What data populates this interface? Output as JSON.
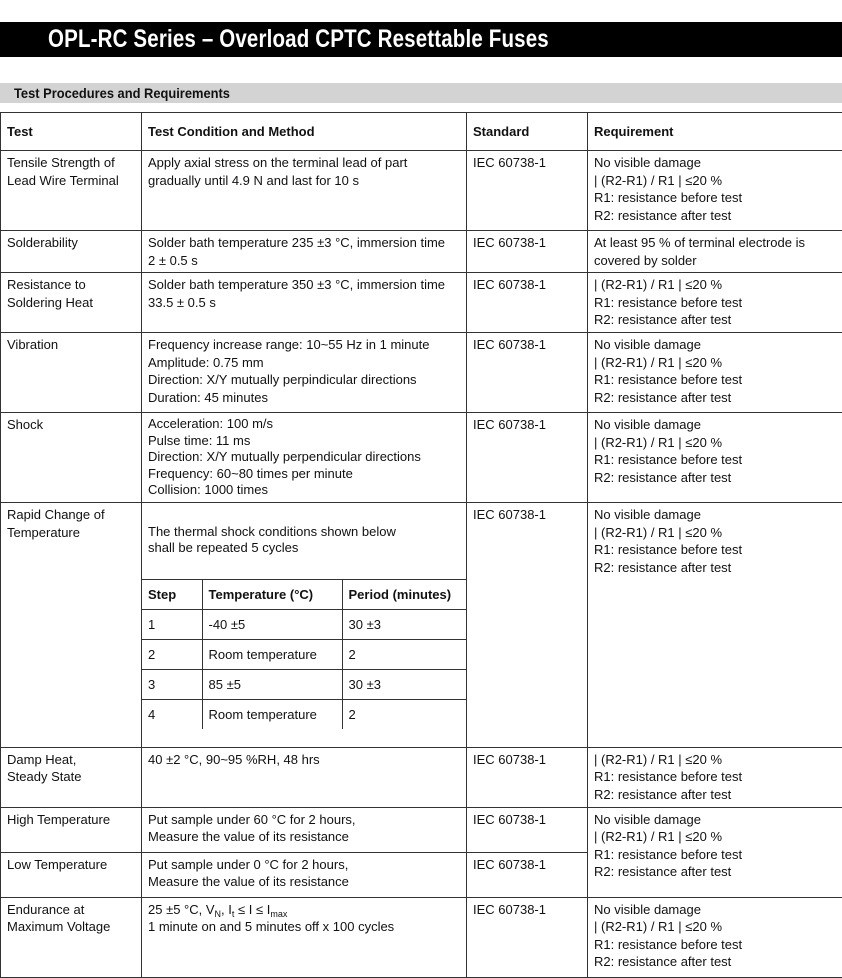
{
  "title": "OPL-RC Series – Overload CPTC Resettable Fuses",
  "section": "Test Procedures and Requirements",
  "headers": {
    "test": "Test",
    "condition": "Test Condition and Method",
    "standard": "Standard",
    "requirement": "Requirement"
  },
  "rows": [
    {
      "test": "Tensile Strength of\nLead Wire Terminal",
      "condition": "Apply axial stress on the terminal lead of part\ngradually until 4.9 N and last for 10 s",
      "standard": "IEC 60738-1",
      "requirement": "No visible damage\n| (R2-R1) / R1 | ≤20 %\nR1: resistance before test\nR2: resistance after test"
    },
    {
      "test": "Solderability",
      "condition": "Solder bath temperature 235 ±3 °C, immersion time\n2 ± 0.5 s",
      "standard": "IEC 60738-1",
      "requirement": "At least 95 % of terminal electrode is\ncovered by solder"
    },
    {
      "test": "Resistance to\nSoldering Heat",
      "condition": "Solder bath temperature 350 ±3 °C, immersion time\n33.5 ± 0.5 s",
      "standard": "IEC 60738-1",
      "requirement": "| (R2-R1) / R1 | ≤20 %\nR1: resistance before test\nR2: resistance after test"
    },
    {
      "test": "Vibration",
      "condition": "Frequency increase range: 10~55 Hz in 1 minute\nAmplitude: 0.75 mm\nDirection: X/Y mutually perpindicular directions\nDuration: 45 minutes",
      "standard": "IEC 60738-1",
      "requirement": "No visible damage\n| (R2-R1) / R1 | ≤20 %\nR1: resistance before test\nR2: resistance after test"
    },
    {
      "test": "Shock",
      "condition": "Acceleration: 100 m/s\nPulse time: 11 ms\nDirection: X/Y mutually perpendicular directions\nFrequency: 60~80 times per minute\nCollision: 1000 times",
      "standard": "IEC 60738-1",
      "requirement": "No visible damage\n| (R2-R1) / R1 | ≤20 %\nR1: resistance before test\nR2: resistance after test"
    },
    {
      "test": "Rapid Change of\nTemperature",
      "condition": "The thermal shock conditions shown below\nshall be repeated 5 cycles",
      "standard": "IEC 60738-1",
      "requirement": "No visible damage\n| (R2-R1) / R1 | ≤20 %\nR1: resistance before test\nR2: resistance after test",
      "steps": {
        "headers": [
          "Step",
          "Temperature (°C)",
          "Period (minutes)"
        ],
        "rows": [
          [
            "1",
            "-40 ±5",
            "30 ±3"
          ],
          [
            "2",
            "Room temperature",
            "2"
          ],
          [
            "3",
            "85 ±5",
            "30 ±3"
          ],
          [
            "4",
            "Room temperature",
            "2"
          ]
        ]
      }
    },
    {
      "test": "Damp Heat,\nSteady State",
      "condition": "40 ±2 °C, 90~95 %RH, 48 hrs",
      "standard": "IEC 60738-1",
      "requirement": "| (R2-R1) / R1 | ≤20 %\nR1: resistance before test\nR2: resistance after test"
    },
    {
      "test": "High Temperature",
      "condition": "Put sample under 60 °C for 2 hours,\nMeasure the value of its resistance",
      "standard": "IEC 60738-1",
      "requirement": "No visible damage\n| (R2-R1) / R1 | ≤20 %\nR1: resistance before test\nR2: resistance after test"
    },
    {
      "test": "Low Temperature",
      "condition": "Put sample under 0 °C for 2 hours,\nMeasure the value of its resistance",
      "standard": "IEC 60738-1"
    },
    {
      "test": "Endurance at\nMaximum Voltage",
      "condition_parts": [
        "25 ±5 °C, V",
        "N",
        ", I",
        "t",
        " ≤ I ≤ I",
        "max"
      ],
      "condition_line2": "1 minute on and 5 minutes off x 100 cycles",
      "standard": "IEC 60738-1",
      "requirement": "No visible damage\n| (R2-R1) / R1 | ≤20 %\nR1: resistance before test\nR2: resistance after test"
    }
  ]
}
